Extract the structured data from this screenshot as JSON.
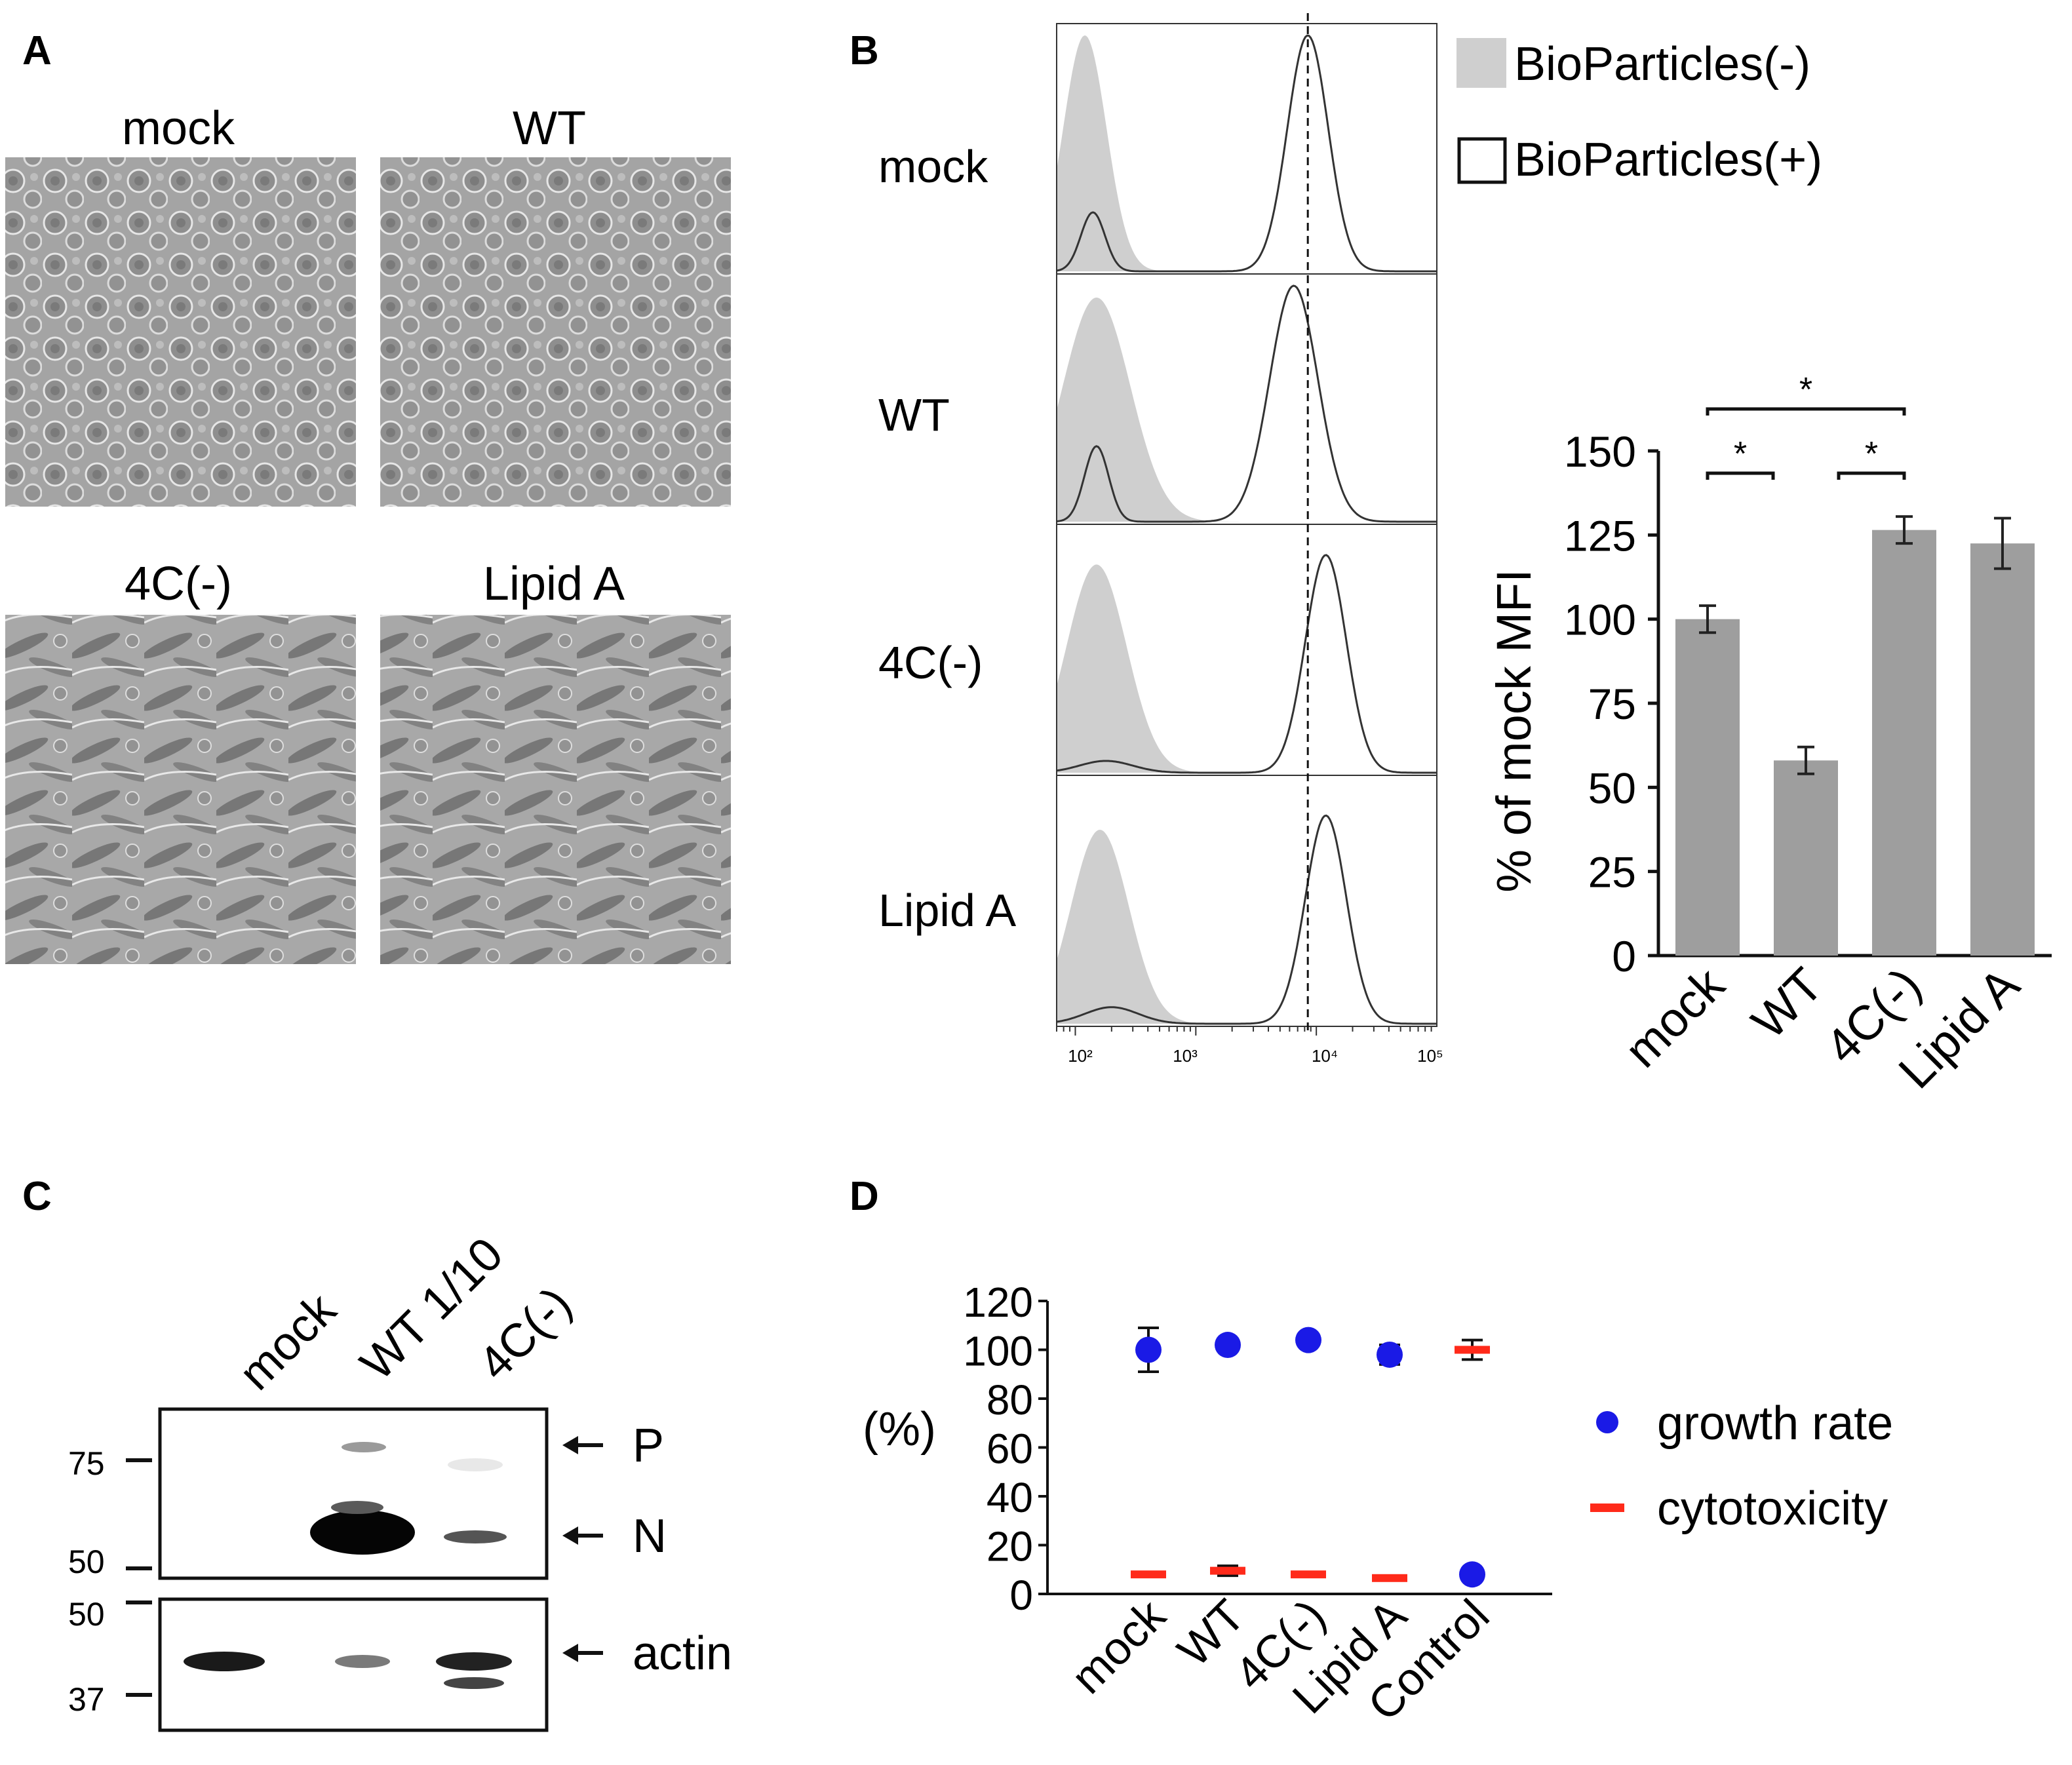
{
  "panel_labels": {
    "a": "A",
    "b": "B",
    "c": "C",
    "d": "D"
  },
  "panel_a": {
    "image_labels": [
      "mock",
      "WT",
      "4C(-)",
      "Lipid A"
    ]
  },
  "panel_b": {
    "row_labels": [
      "mock",
      "WT",
      "4C(-)",
      "Lipid A"
    ],
    "legend": {
      "filled": "BioParticles(-)",
      "open": "BioParticles(+)"
    },
    "x_ticks": [
      "10²",
      "10³",
      "10⁴",
      "10⁵"
    ],
    "reference_line_value": 8500
  },
  "panel_c": {
    "lane_labels": [
      "mock",
      "WT 1/10",
      "4C(-)"
    ],
    "marker_labels_top": [
      "75",
      "50"
    ],
    "marker_labels_bottom": [
      "50",
      "37"
    ],
    "band_labels": [
      "P",
      "N",
      "actin"
    ]
  },
  "chart_data": [
    {
      "id": "panel-b-histograms",
      "type": "area",
      "title": "",
      "xlabel": "",
      "ylabel": "",
      "x_scale": "log",
      "xlim": [
        70,
        100000
      ],
      "x_ticks": [
        100,
        1000,
        10000,
        100000
      ],
      "reference_line_x": 8500,
      "rows": [
        {
          "name": "mock",
          "filled_peaks": [
            {
              "center": 120,
              "height": 1.0,
              "width": 0.18
            }
          ],
          "open_peaks": [
            {
              "center": 140,
              "height": 0.25,
              "width": 0.1
            },
            {
              "center": 8500,
              "height": 1.0,
              "width": 0.17
            }
          ]
        },
        {
          "name": "WT",
          "filled_peaks": [
            {
              "center": 150,
              "height": 0.95,
              "width": 0.28
            }
          ],
          "open_peaks": [
            {
              "center": 150,
              "height": 0.32,
              "width": 0.1
            },
            {
              "center": 6500,
              "height": 1.0,
              "width": 0.2
            }
          ]
        },
        {
          "name": "4C(-)",
          "filled_peaks": [
            {
              "center": 150,
              "height": 0.88,
              "width": 0.25
            }
          ],
          "open_peaks": [
            {
              "center": 180,
              "height": 0.05,
              "width": 0.22
            },
            {
              "center": 12000,
              "height": 0.92,
              "width": 0.17
            }
          ]
        },
        {
          "name": "Lipid A",
          "filled_peaks": [
            {
              "center": 160,
              "height": 0.82,
              "width": 0.24
            }
          ],
          "open_peaks": [
            {
              "center": 200,
              "height": 0.07,
              "width": 0.22
            },
            {
              "center": 12000,
              "height": 0.88,
              "width": 0.17
            }
          ]
        }
      ]
    },
    {
      "id": "panel-b-bars",
      "type": "bar",
      "title": "",
      "xlabel": "",
      "ylabel": "% of mock MFI",
      "categories": [
        "mock",
        "WT",
        "4C(-)",
        "Lipid A"
      ],
      "values": [
        100,
        58,
        126.5,
        122.5
      ],
      "errors": [
        4,
        4,
        4,
        7.5
      ],
      "ylim": [
        0,
        150
      ],
      "y_ticks": [
        0,
        25,
        50,
        75,
        100,
        125,
        150
      ],
      "color": "#9e9e9e",
      "significance": [
        {
          "from": 0,
          "to": 2,
          "label": "*"
        },
        {
          "from": 0,
          "to": 1,
          "label": "*"
        },
        {
          "from": 1,
          "to": 2,
          "label": "*"
        }
      ]
    },
    {
      "id": "panel-d-scatter",
      "type": "scatter",
      "title": "",
      "xlabel": "",
      "ylabel": "(%)",
      "categories": [
        "mock",
        "WT",
        "4C(-)",
        "Lipid A",
        "Control"
      ],
      "ylim": [
        0,
        120
      ],
      "y_ticks": [
        0,
        20,
        40,
        60,
        80,
        100,
        120
      ],
      "series": [
        {
          "name": "growth rate",
          "marker": "circle",
          "color": "#1a1ae6",
          "values": [
            100,
            102,
            104,
            98,
            8
          ],
          "errors": [
            9,
            0,
            0,
            4,
            0
          ]
        },
        {
          "name": "cytotoxicity",
          "marker": "dash",
          "color": "#ff2a1a",
          "values": [
            8,
            9.5,
            8,
            6.5,
            100
          ],
          "errors": [
            1,
            2,
            0,
            0,
            4
          ]
        }
      ],
      "legend_position": "right"
    }
  ]
}
